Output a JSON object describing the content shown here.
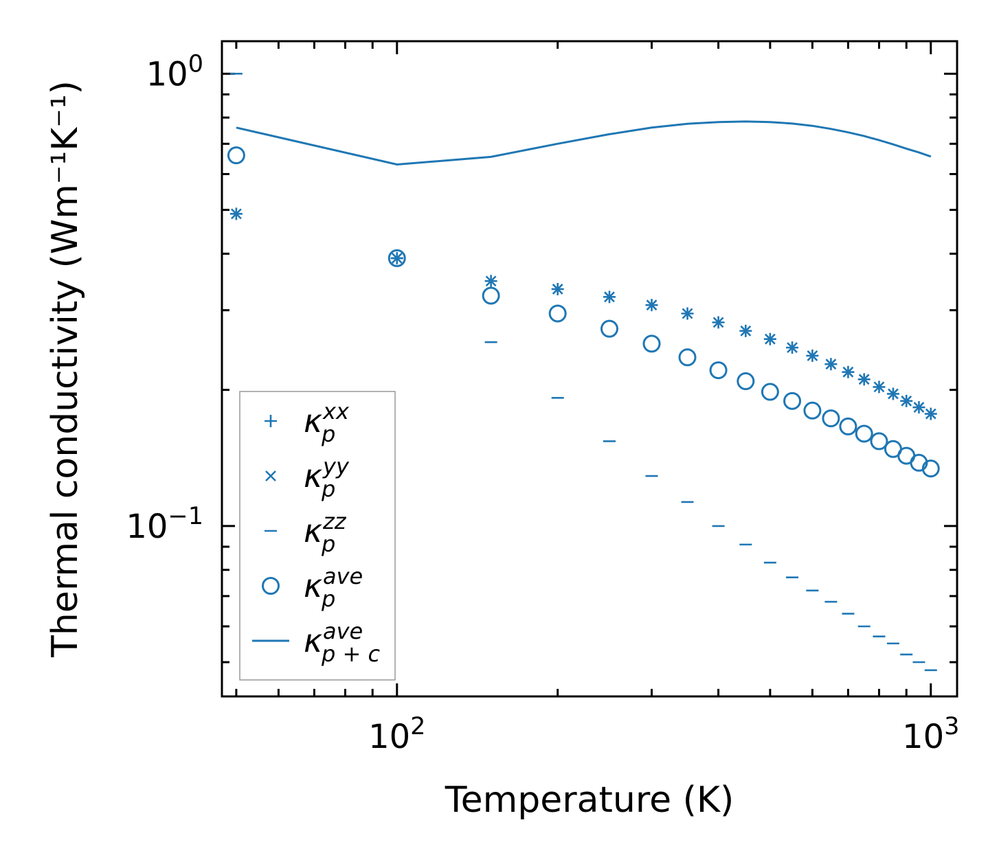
{
  "chart_data": {
    "type": "scatter",
    "xscale": "log",
    "yscale": "log",
    "xlabel": "Temperature (K)",
    "ylabel": "Thermal conductivity (Wm⁻¹K⁻¹)",
    "xlim": [
      47,
      1120
    ],
    "ylim": [
      0.042,
      1.18
    ],
    "x_ticks": [
      {
        "value": 100,
        "base": "10",
        "exp": "2"
      },
      {
        "value": 1000,
        "base": "10",
        "exp": "3"
      }
    ],
    "y_ticks": [
      {
        "value": 0.1,
        "base": "10",
        "exp": "−1"
      },
      {
        "value": 1.0,
        "base": "10",
        "exp": "0"
      }
    ],
    "x": [
      50,
      100,
      150,
      200,
      250,
      300,
      350,
      400,
      450,
      500,
      550,
      600,
      650,
      700,
      750,
      800,
      850,
      900,
      950,
      1000
    ],
    "color": "#1f77b4",
    "series": [
      {
        "name": "kappa_p_xx",
        "marker": "plus",
        "values": [
          0.49,
          0.391,
          0.348,
          0.334,
          0.321,
          0.308,
          0.295,
          0.282,
          0.27,
          0.259,
          0.248,
          0.238,
          0.228,
          0.219,
          0.211,
          0.203,
          0.196,
          0.189,
          0.183,
          0.177
        ]
      },
      {
        "name": "kappa_p_yy",
        "marker": "x",
        "values": [
          0.49,
          0.391,
          0.348,
          0.334,
          0.321,
          0.308,
          0.295,
          0.282,
          0.27,
          0.259,
          0.248,
          0.238,
          0.228,
          0.219,
          0.211,
          0.203,
          0.196,
          0.189,
          0.183,
          0.177
        ]
      },
      {
        "name": "kappa_p_zz",
        "marker": "hline",
        "values": [
          1.0,
          0.391,
          0.255,
          0.192,
          0.154,
          0.129,
          0.113,
          0.1,
          0.091,
          0.083,
          0.077,
          0.072,
          0.068,
          0.064,
          0.06,
          0.057,
          0.055,
          0.052,
          0.05,
          0.048
        ]
      },
      {
        "name": "kappa_p_ave",
        "marker": "circle",
        "values": [
          0.66,
          0.391,
          0.323,
          0.295,
          0.273,
          0.253,
          0.236,
          0.221,
          0.209,
          0.198,
          0.189,
          0.18,
          0.173,
          0.166,
          0.16,
          0.154,
          0.148,
          0.143,
          0.138,
          0.134
        ]
      },
      {
        "name": "kappa_p+c_ave",
        "marker": "line",
        "values": [
          0.76,
          0.63,
          0.655,
          0.7,
          0.735,
          0.76,
          0.775,
          0.782,
          0.784,
          0.782,
          0.776,
          0.767,
          0.755,
          0.742,
          0.728,
          0.713,
          0.698,
          0.683,
          0.67,
          0.656
        ]
      }
    ],
    "legend": {
      "placement": "lower-left",
      "entries": [
        {
          "symbol": "κ",
          "sub": "p",
          "sup": "xx",
          "marker": "plus"
        },
        {
          "symbol": "κ",
          "sub": "p",
          "sup": "yy",
          "marker": "x"
        },
        {
          "symbol": "κ",
          "sub": "p",
          "sup": "zz",
          "marker": "hline"
        },
        {
          "symbol": "κ",
          "sub": "p",
          "sup": "ave",
          "marker": "circle"
        },
        {
          "symbol": "κ",
          "sub": "p + c",
          "sup": "ave",
          "marker": "line"
        }
      ]
    }
  }
}
